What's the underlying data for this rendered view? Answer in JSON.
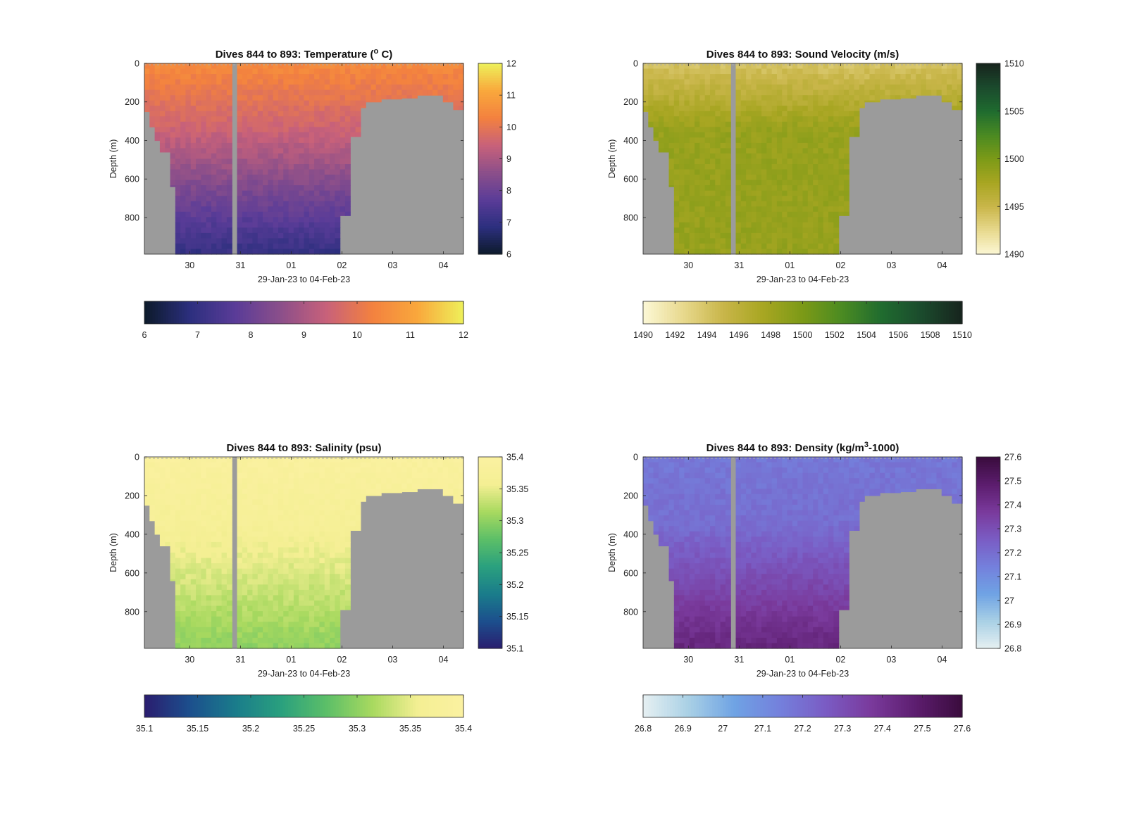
{
  "figure": {
    "xlabel": "29-Jan-23 to 04-Feb-23",
    "ylabel": "Depth (m)",
    "land_color": "#9b9b9b"
  },
  "chart_data": [
    {
      "type": "heatmap",
      "title": "Dives 844 to 893: Temperature (",
      "title_super": "o",
      "title_tail": " C)",
      "xlabel": "29-Jan-23 to 04-Feb-23",
      "ylabel": "Depth (m)",
      "x_ticks": [
        "30",
        "31",
        "01",
        "02",
        "03",
        "04"
      ],
      "y_ticks": [
        "0",
        "200",
        "400",
        "600",
        "800"
      ],
      "ylim": [
        0,
        990
      ],
      "x_range_days": [
        29.1,
        35.4
      ],
      "colorbar": {
        "min": 6,
        "max": 12,
        "ticks": [
          "6",
          "7",
          "8",
          "9",
          "10",
          "11",
          "12"
        ],
        "colors": [
          "#0c1a2a",
          "#2c2f7e",
          "#5a3c98",
          "#8c4f8a",
          "#c8617a",
          "#f3813f",
          "#f9a83c",
          "#eef05a"
        ]
      },
      "profile": {
        "surface": 10.5,
        "mid": 9.5,
        "deep": 7.0
      }
    },
    {
      "type": "heatmap",
      "title": "Dives 844 to 893: Sound Velocity (m/s)",
      "title_super": "",
      "title_tail": "",
      "xlabel": "29-Jan-23 to 04-Feb-23",
      "ylabel": "Depth (m)",
      "x_ticks": [
        "30",
        "31",
        "01",
        "02",
        "03",
        "04"
      ],
      "y_ticks": [
        "0",
        "200",
        "400",
        "600",
        "800"
      ],
      "ylim": [
        0,
        990
      ],
      "x_range_days": [
        29.1,
        35.4
      ],
      "colorbar": {
        "min": 1490,
        "max": 1510,
        "ticks": [
          "1490",
          "1492",
          "1494",
          "1496",
          "1498",
          "1500",
          "1502",
          "1504",
          "1506",
          "1508",
          "1510"
        ],
        "side_ticks": [
          "1490",
          "1495",
          "1500",
          "1505",
          "1510"
        ],
        "colors": [
          "#fcf8d6",
          "#e8d98e",
          "#c9b64a",
          "#a8a622",
          "#7c9a17",
          "#4a8a22",
          "#1f6b2f",
          "#1b4a2d",
          "#17241d"
        ]
      },
      "profile": {
        "surface": 1494.0,
        "mid": 1498.5,
        "deep": 1498.5
      }
    },
    {
      "type": "heatmap",
      "title": "Dives 844 to 893: Salinity (psu)",
      "title_super": "",
      "title_tail": "",
      "xlabel": "29-Jan-23 to 04-Feb-23",
      "ylabel": "Depth (m)",
      "x_ticks": [
        "30",
        "31",
        "01",
        "02",
        "03",
        "04"
      ],
      "y_ticks": [
        "0",
        "200",
        "400",
        "600",
        "800"
      ],
      "ylim": [
        0,
        990
      ],
      "x_range_days": [
        29.1,
        35.4
      ],
      "colorbar": {
        "min": 35.1,
        "max": 35.4,
        "ticks": [
          "35.1",
          "35.15",
          "35.2",
          "35.25",
          "35.3",
          "35.35",
          "35.4"
        ],
        "colors": [
          "#2a1d6f",
          "#1c4f8d",
          "#1a7c8b",
          "#2aa07e",
          "#5cbf68",
          "#a8d95f",
          "#f4ef93",
          "#fbf1a1"
        ]
      },
      "profile": {
        "surface": 35.39,
        "mid": 35.37,
        "deep": 35.3
      }
    },
    {
      "type": "heatmap",
      "title": "Dives 844 to 893: Density (kg/m",
      "title_super": "3",
      "title_tail": "-1000)",
      "xlabel": "29-Jan-23 to 04-Feb-23",
      "ylabel": "Depth (m)",
      "x_ticks": [
        "30",
        "31",
        "01",
        "02",
        "03",
        "04"
      ],
      "y_ticks": [
        "0",
        "200",
        "400",
        "600",
        "800"
      ],
      "ylim": [
        0,
        990
      ],
      "x_range_days": [
        29.1,
        35.4
      ],
      "colorbar": {
        "min": 26.8,
        "max": 27.6,
        "ticks": [
          "26.8",
          "26.9",
          "27",
          "27.1",
          "27.2",
          "27.3",
          "27.4",
          "27.5",
          "27.6"
        ],
        "colors": [
          "#e6f0f2",
          "#a9d0e5",
          "#6fa3e4",
          "#7480dc",
          "#7a5cc4",
          "#7a3a9c",
          "#5c1d6e",
          "#3a0c3d"
        ]
      },
      "profile": {
        "surface": 27.17,
        "mid": 27.2,
        "deep": 27.45
      }
    }
  ]
}
